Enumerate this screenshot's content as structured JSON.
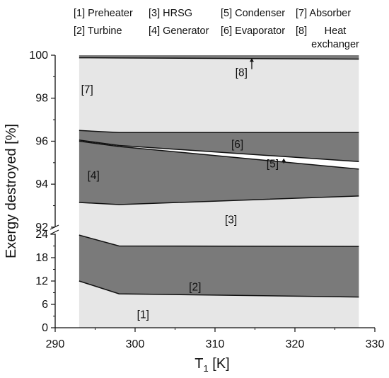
{
  "chart_data": {
    "type": "area",
    "xlabel": "T",
    "xlabel_subscript": "1",
    "xlabel_unit": " [K]",
    "ylabel": "Exergy destroyed [%]",
    "xlim": [
      290,
      330
    ],
    "x_ticks": [
      "290",
      "300",
      "310",
      "320",
      "330"
    ],
    "y_axis_broken": true,
    "y_lower_range": [
      0,
      26
    ],
    "y_upper_range": [
      91.7,
      100
    ],
    "y_ticks_lower": [
      "0",
      "6",
      "12",
      "18",
      "24"
    ],
    "y_ticks_upper": [
      "92",
      "94",
      "96",
      "98",
      "100"
    ],
    "legend_placement": "top",
    "legend": [
      "[1] Preheater",
      "[3] HRSG",
      "[5] Condenser",
      "[7] Absorber",
      "[2] Turbine",
      "[4] Generator",
      "[6] Evaporator",
      "[8]",
      "Heat",
      "exchanger"
    ],
    "x": [
      293,
      298,
      328
    ],
    "boundaries_cumulative": [
      {
        "upper_of": "[1] Preheater",
        "values": [
          12,
          8.7,
          7.9
        ]
      },
      {
        "upper_of": "[2] Turbine",
        "values": [
          23.8,
          21,
          20.9
        ]
      },
      {
        "upper_of": "[3] HRSG",
        "values": [
          93.15,
          93.05,
          93.45
        ]
      },
      {
        "upper_of": "[4] Generator",
        "values": [
          96.0,
          95.75,
          94.7
        ]
      },
      {
        "upper_of": "[5] Condenser",
        "values": [
          96.05,
          95.8,
          95.05
        ]
      },
      {
        "upper_of": "[6] Evaporator",
        "values": [
          96.5,
          96.4,
          96.4
        ]
      },
      {
        "upper_of": "[7] Absorber",
        "values": [
          99.88,
          99.87,
          99.82
        ]
      },
      {
        "upper_of": "[8] Heat exchanger",
        "values": [
          100,
          100,
          100
        ]
      }
    ],
    "region_labels": [
      {
        "text": "[1]",
        "x": 301,
        "y": 3.4
      },
      {
        "text": "[2]",
        "x": 307.5,
        "y": 10.5
      },
      {
        "text": "[3]",
        "x": 312,
        "y": 92.35
      },
      {
        "text": "[4]",
        "x": 294.8,
        "y": 94.4
      },
      {
        "text": "[5]",
        "x": 317.2,
        "y": 94.95
      },
      {
        "text": "[6]",
        "x": 312.8,
        "y": 95.85
      },
      {
        "text": "[7]",
        "x": 294,
        "y": 98.4
      },
      {
        "text": "[8]",
        "x": 313.3,
        "y": 99.2
      }
    ],
    "colors": {
      "light": "#e6e6e6",
      "dark": "#7a7a7a",
      "line": "#111111"
    }
  }
}
